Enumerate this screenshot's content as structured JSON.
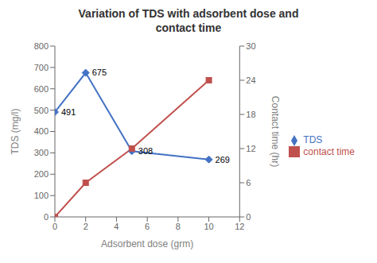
{
  "chart_data": {
    "type": "line",
    "title": "Variation of TDS with adsorbent dose and\ncontact time",
    "xlabel": "Adsorbent dose (grm)",
    "ylabel": "TDS (mg/l)",
    "y2label": "Contact time (hr)",
    "x": [
      0,
      2,
      5,
      10
    ],
    "series": [
      {
        "name": "TDS",
        "color": "#4472C4",
        "values": [
          491,
          675,
          308,
          269
        ],
        "marker": "diamond",
        "data_labels": true
      },
      {
        "name": "contact time",
        "color": "#C0504D",
        "values": [
          0,
          6,
          12,
          24
        ],
        "marker": "square",
        "axis": "y2"
      }
    ],
    "xlim": [
      0,
      12
    ],
    "xticks": [
      0,
      2,
      4,
      6,
      8,
      10,
      12
    ],
    "ylim": [
      0,
      800
    ],
    "yticks": [
      0,
      100,
      200,
      300,
      400,
      500,
      600,
      700,
      800
    ],
    "y2lim": [
      0,
      30
    ],
    "y2ticks": [
      0,
      6,
      12,
      18,
      24,
      30
    ],
    "grid": false,
    "legend": "right"
  }
}
